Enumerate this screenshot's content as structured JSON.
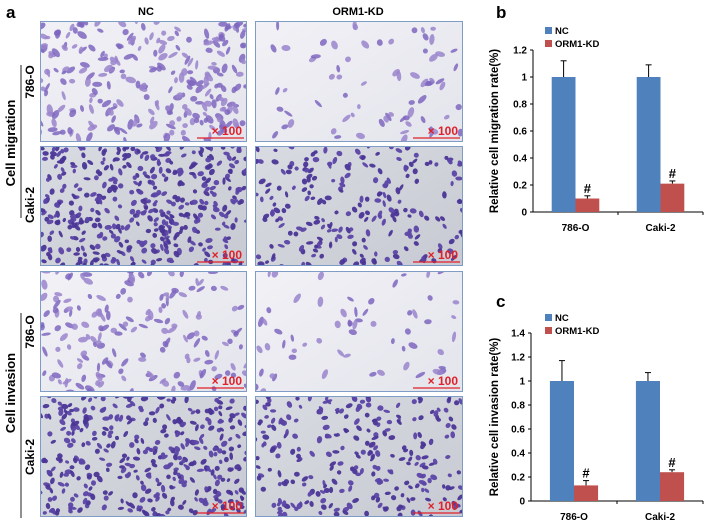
{
  "panel_a": {
    "letter": "a",
    "columns": [
      "NC",
      "ORM1-KD"
    ],
    "groups": [
      {
        "label": "Cell migration",
        "rows": [
          "786-O",
          "Caki-2"
        ]
      },
      {
        "label": "Cell invasion",
        "rows": [
          "786-O",
          "Caki-2"
        ]
      }
    ],
    "magnification": "× 100",
    "stain_color": "#6a4fb0",
    "scale_color": "#e0202a"
  },
  "chart_data": [
    {
      "letter": "b",
      "type": "bar",
      "categories": [
        "786-O",
        "Caki-2"
      ],
      "series": [
        {
          "name": "NC",
          "color": "#4f81bd",
          "values": [
            1.0,
            1.0
          ],
          "error_upper": [
            1.12,
            1.09
          ]
        },
        {
          "name": "ORM1-KD",
          "color": "#c0504d",
          "values": [
            0.1,
            0.21
          ],
          "error_upper": [
            0.12,
            0.23
          ]
        }
      ],
      "annotations": [
        "#",
        "#"
      ],
      "ylabel": "Relative cell migration rate(%)",
      "ylim": [
        0,
        1.2
      ],
      "yticks": [
        "0",
        "0.2",
        "0.4",
        "0.6",
        "0.8",
        "1",
        "1.2"
      ],
      "legend": "top-left",
      "grid": false
    },
    {
      "letter": "c",
      "type": "bar",
      "categories": [
        "786-O",
        "Caki-2"
      ],
      "series": [
        {
          "name": "NC",
          "color": "#4f81bd",
          "values": [
            1.0,
            1.0
          ],
          "error_upper": [
            1.17,
            1.07
          ]
        },
        {
          "name": "ORM1-KD",
          "color": "#c0504d",
          "values": [
            0.13,
            0.24
          ],
          "error_upper": [
            0.17,
            0.26
          ]
        }
      ],
      "annotations": [
        "#",
        "#"
      ],
      "ylabel": "Relative cell invasion rate(%)",
      "ylim": [
        0,
        1.4
      ],
      "yticks": [
        "0",
        "0.2",
        "0.4",
        "0.6",
        "0.8",
        "1",
        "1.2",
        "1.4"
      ],
      "legend": "top-left",
      "grid": false
    }
  ]
}
